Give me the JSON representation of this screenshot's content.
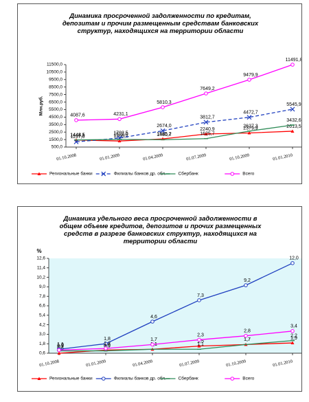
{
  "chart_data": [
    {
      "type": "line",
      "title": "Динамика просроченной задолженности по кредитам, депозитам и прочим размещенным средствам банковских структур, находящихся на территории области",
      "y_label": "Млн.руб.",
      "categories": [
        "01.10.2008",
        "01.01.2009",
        "01.04.2009",
        "01.07.2009",
        "01.10.2009",
        "01.01.2010"
      ],
      "ylim": [
        500,
        11500
      ],
      "yticks": [
        {
          "value": 500,
          "label": "500,0"
        },
        {
          "value": 1500,
          "label": "1500,0"
        },
        {
          "value": 2500,
          "label": "2500,0"
        },
        {
          "value": 3500,
          "label": "3500,0"
        },
        {
          "value": 4500,
          "label": "4500,0"
        },
        {
          "value": 5500,
          "label": "5500,0"
        },
        {
          "value": 6500,
          "label": "6500,0"
        },
        {
          "value": 7500,
          "label": "7500,0"
        },
        {
          "value": 8500,
          "label": "8500,0"
        },
        {
          "value": 9500,
          "label": "9500,0"
        },
        {
          "value": 10500,
          "label": "10500,0"
        },
        {
          "value": 11500,
          "label": "11500,0"
        }
      ],
      "legend": "bottom",
      "series": [
        {
          "name": "Региональные банки",
          "color": "#ff0000",
          "marker": "triangle",
          "dashed": false,
          "values": [
            1444.5,
            1308.2,
            1585.2,
            2240.9,
            2379.9,
            2613.5
          ],
          "value_labels": [
            "1444,5",
            "1308,2",
            "1585,2",
            "2240,9",
            "2379,9",
            "2613,5"
          ]
        },
        {
          "name": "Филиалы банков др. обл.",
          "color": "#1f3fbf",
          "marker": "x",
          "dashed": true,
          "values": [
            1197.0,
            1702.5,
            2674.0,
            3812.7,
            4472.7,
            5545.9
          ],
          "value_labels": [
            "1197,0",
            "1702,5",
            "2674,0",
            "3812,7",
            "4472,7",
            "5545,9"
          ]
        },
        {
          "name": "Сбербанк",
          "color": "#2e8b57",
          "marker": "dash",
          "dashed": false,
          "values": [
            1448.1,
            1522.0,
            1480.7,
            1625.7,
            2627.3,
            3432.6
          ],
          "value_labels": [
            "1448,1",
            "1522,0",
            "1480,7",
            "1625,7",
            "2627,3",
            "3432,6"
          ]
        },
        {
          "name": "Всего",
          "color": "#ff00ff",
          "marker": "circle",
          "dashed": false,
          "values": [
            4087.6,
            4231.1,
            5810.3,
            7649.2,
            9479.9,
            11491.8
          ],
          "value_labels": [
            "4087,6",
            "4231,1",
            "5810,3",
            "7649,2",
            "9479,9",
            "11491,8"
          ]
        }
      ]
    },
    {
      "type": "line",
      "title": "Динамика удельного веса просроченной задолженности в общем объеме кредитов, депозитов и прочих размещенных средств в разрезе банковских структур, находящихся на территории области",
      "y_label": "%",
      "plot_background": "#dff7fa",
      "categories": [
        "01.10.2008",
        "01.01.2009",
        "01.04.2009",
        "01.07.2009",
        "01.10.2009",
        "01.01.2010"
      ],
      "ylim": [
        0.6,
        12.6
      ],
      "yticks": [
        {
          "value": 0.6,
          "label": "0,6"
        },
        {
          "value": 1.8,
          "label": "1,8"
        },
        {
          "value": 3.0,
          "label": "3,0"
        },
        {
          "value": 4.2,
          "label": "4,2"
        },
        {
          "value": 5.4,
          "label": "5,4"
        },
        {
          "value": 6.6,
          "label": "6,6"
        },
        {
          "value": 7.8,
          "label": "7,8"
        },
        {
          "value": 9.0,
          "label": "9,0"
        },
        {
          "value": 10.2,
          "label": "10,2"
        },
        {
          "value": 11.4,
          "label": "11,4"
        },
        {
          "value": 12.6,
          "label": "12,6"
        }
      ],
      "legend": "bottom",
      "series": [
        {
          "name": "Региональные банки",
          "color": "#ff0000",
          "marker": "triangle",
          "dashed": false,
          "values": [
            0.6,
            1.0,
            1.1,
            1.5,
            1.7,
            1.9
          ],
          "value_labels": [
            "0,6",
            "1,0",
            "1,1",
            "1,5",
            "1,7",
            "1,9"
          ]
        },
        {
          "name": "Филиалы банков др. обл.",
          "color": "#1f3fbf",
          "marker": "circle",
          "dashed": false,
          "values": [
            1.1,
            1.8,
            4.6,
            7.3,
            9.2,
            12.0
          ],
          "value_labels": [
            "1,1",
            "1,8",
            "4,6",
            "7,3",
            "9,2",
            "12,0"
          ]
        },
        {
          "name": "Сбербанк",
          "color": "#2e8b57",
          "marker": "dash",
          "dashed": false,
          "values": [
            0.9,
            0.9,
            1.1,
            1.1,
            1.7,
            2.2
          ],
          "value_labels": [
            "0,9",
            "0,9",
            "1,1",
            "1,1",
            "1,7",
            "2,2"
          ]
        },
        {
          "name": "Всего",
          "color": "#ff00ff",
          "marker": "circle",
          "dashed": false,
          "values": [
            1.0,
            1.2,
            1.7,
            2.3,
            2.8,
            3.4
          ],
          "value_labels": [
            "1,0",
            "1,2",
            "1,7",
            "2,3",
            "2,8",
            "3,4"
          ]
        }
      ]
    }
  ]
}
